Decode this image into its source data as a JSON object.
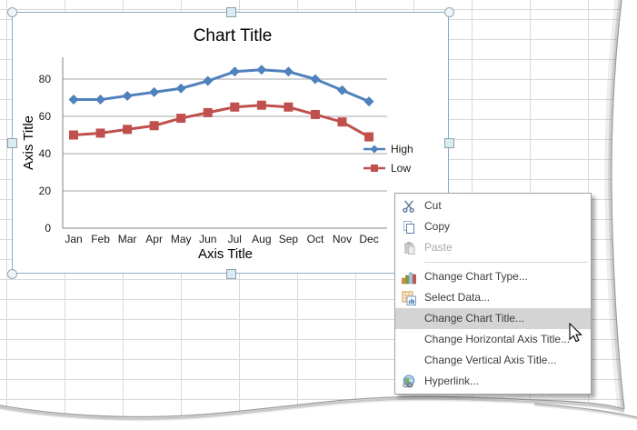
{
  "chart": {
    "title": "Chart Title",
    "x_axis_title": "Axis Title",
    "y_axis_title": "Axis Title",
    "selected": true
  },
  "chart_data": {
    "type": "line",
    "title": "Chart Title",
    "xlabel": "Axis Title",
    "ylabel": "Axis Title",
    "categories": [
      "Jan",
      "Feb",
      "Mar",
      "Apr",
      "May",
      "Jun",
      "Jul",
      "Aug",
      "Sep",
      "Oct",
      "Nov",
      "Dec"
    ],
    "series": [
      {
        "name": "High",
        "color": "#4F81BD",
        "marker": "diamond",
        "values": [
          69,
          69,
          71,
          73,
          75,
          79,
          84,
          85,
          84,
          80,
          74,
          68
        ]
      },
      {
        "name": "Low",
        "color": "#C0504D",
        "marker": "square",
        "values": [
          50,
          51,
          53,
          55,
          59,
          62,
          65,
          66,
          65,
          61,
          57,
          49
        ]
      }
    ],
    "yticks": [
      0,
      20,
      40,
      60,
      80
    ],
    "ylim": [
      0,
      92
    ],
    "grid": "horizontal-major",
    "legend_position": "right"
  },
  "context_menu": {
    "items": [
      {
        "id": "cut",
        "label": "Cut",
        "icon": "scissors-icon",
        "enabled": true,
        "highlighted": false
      },
      {
        "id": "copy",
        "label": "Copy",
        "icon": "copy-icon",
        "enabled": true,
        "highlighted": false
      },
      {
        "id": "paste",
        "label": "Paste",
        "icon": "paste-icon",
        "enabled": false,
        "highlighted": false
      },
      {
        "separator": true
      },
      {
        "id": "change-chart-type",
        "label": "Change Chart Type...",
        "icon": "chart-type-icon",
        "enabled": true,
        "highlighted": false
      },
      {
        "id": "select-data",
        "label": "Select Data...",
        "icon": "select-data-icon",
        "enabled": true,
        "highlighted": false
      },
      {
        "id": "change-chart-title",
        "label": "Change Chart Title...",
        "icon": null,
        "enabled": true,
        "highlighted": true
      },
      {
        "id": "change-horizontal-axis-title",
        "label": "Change Horizontal Axis Title...",
        "icon": null,
        "enabled": true,
        "highlighted": false
      },
      {
        "id": "change-vertical-axis-title",
        "label": "Change Vertical Axis Title...",
        "icon": null,
        "enabled": true,
        "highlighted": false
      },
      {
        "id": "hyperlink",
        "label": "Hyperlink...",
        "icon": "hyperlink-icon",
        "enabled": true,
        "highlighted": false
      }
    ]
  },
  "colors": {
    "series_high": "#4F81BD",
    "series_low": "#C0504D",
    "menu_highlight": "#d4d4d4",
    "chart_border": "#8badc8",
    "sheet_grid_line": "#d9d9d9",
    "plot_grid_line": "#a6a6a6"
  }
}
